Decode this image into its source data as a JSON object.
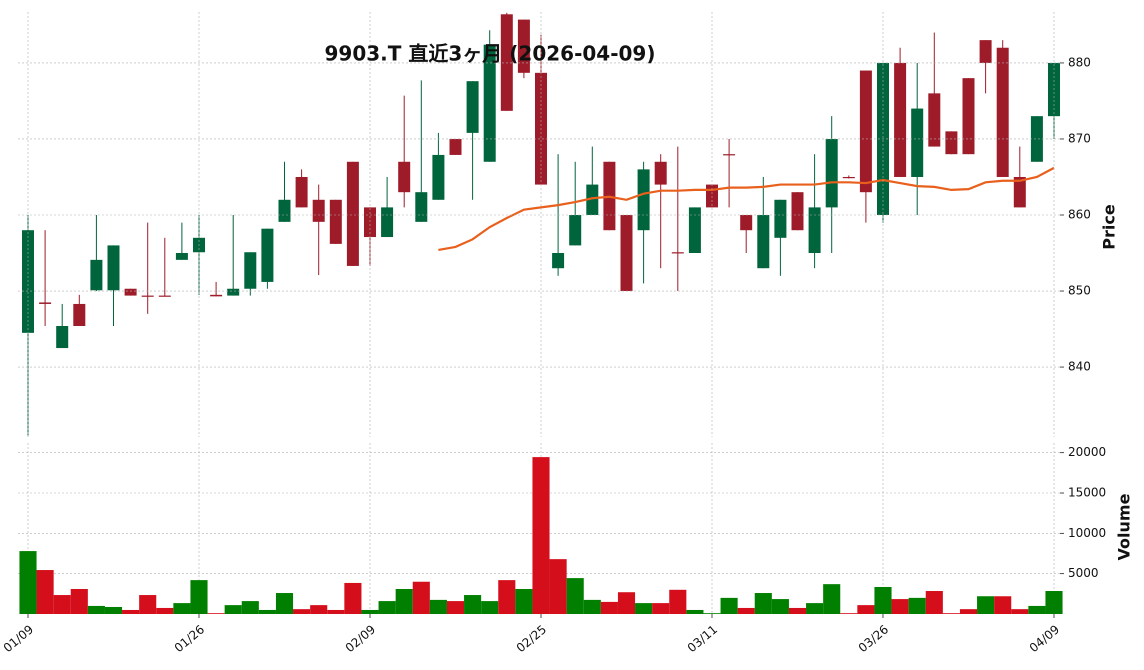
{
  "chart_data": [
    {
      "type": "candlestick",
      "title": "9903.T 直近3ヶ月 (2026-04-09)",
      "ylabel": "Price",
      "categories": [
        "01/09",
        null,
        null,
        null,
        null,
        null,
        null,
        null,
        null,
        null,
        "01/26",
        null,
        null,
        null,
        null,
        null,
        null,
        null,
        null,
        null,
        "02/09",
        null,
        null,
        null,
        null,
        null,
        null,
        null,
        null,
        null,
        "02/25",
        null,
        null,
        null,
        null,
        null,
        null,
        null,
        null,
        null,
        "03/11",
        null,
        null,
        null,
        null,
        null,
        null,
        null,
        null,
        null,
        "03/26",
        null,
        null,
        null,
        null,
        null,
        null,
        null,
        null,
        null,
        "04/09"
      ],
      "open": [
        844.5,
        848.5,
        842.5,
        848.3,
        850.1,
        850.1,
        850.3,
        849.4,
        849.4,
        854.1,
        855.1,
        849.5,
        849.4,
        850.3,
        851.2,
        859.1,
        865,
        862,
        862,
        867,
        861,
        857.1,
        867,
        859.1,
        862,
        870,
        870.8,
        867,
        886.4,
        885.7,
        878.7,
        853,
        856,
        860,
        867,
        860,
        858,
        867,
        855.1,
        855,
        864,
        868,
        860,
        853,
        857,
        863,
        855,
        861,
        865,
        879,
        860,
        880,
        865,
        876,
        871,
        878,
        883,
        882,
        865,
        867,
        873
      ],
      "high": [
        860,
        858,
        848.3,
        849.5,
        860,
        856,
        850.3,
        859,
        857,
        859,
        860,
        851.2,
        860,
        855.1,
        858.2,
        867,
        866,
        864,
        862,
        867,
        861,
        865,
        875.7,
        877.7,
        870.8,
        870,
        877.6,
        884.3,
        886.6,
        885.7,
        883.7,
        868,
        867,
        869,
        867,
        860,
        867,
        868,
        869,
        861,
        864,
        870,
        860,
        865,
        862,
        863,
        868,
        873,
        865.2,
        879,
        880,
        882,
        880,
        884,
        871,
        878,
        883,
        883,
        869,
        873,
        880
      ],
      "low": [
        831,
        845.4,
        842.5,
        845.4,
        850,
        845.4,
        849.4,
        847,
        849.3,
        854.1,
        849.5,
        849.3,
        849.4,
        849.4,
        850.3,
        859.1,
        861,
        852.1,
        856.2,
        853.3,
        853.3,
        857.1,
        861,
        859.1,
        862,
        867.9,
        862,
        867,
        873.7,
        878,
        864,
        852,
        856,
        860,
        858,
        850,
        851,
        853,
        850,
        855,
        861,
        861,
        855,
        853,
        852,
        858,
        853,
        855,
        864.8,
        859,
        859,
        865,
        860,
        869,
        868,
        868,
        876,
        865,
        861,
        867,
        870
      ],
      "close": [
        858,
        848.3,
        845.4,
        845.4,
        854.1,
        856,
        849.4,
        849.3,
        849.3,
        855,
        857,
        849.3,
        850.3,
        855.1,
        858.2,
        862,
        861,
        859.1,
        856.2,
        853.3,
        857.1,
        861,
        863,
        863,
        867.9,
        867.9,
        877.6,
        882.4,
        873.7,
        878.7,
        864,
        855,
        860,
        864,
        858,
        850,
        866,
        864,
        855,
        861,
        861,
        867.9,
        858,
        860,
        862,
        858,
        861,
        870,
        864.9,
        863,
        880,
        865,
        874,
        869,
        868,
        868,
        880,
        865,
        861,
        873,
        880
      ],
      "up_color": "#00643c",
      "down_color": "#9e1c2a",
      "ma_values": [
        null,
        null,
        null,
        null,
        null,
        null,
        null,
        null,
        null,
        null,
        null,
        null,
        null,
        null,
        null,
        null,
        null,
        null,
        null,
        null,
        null,
        null,
        null,
        null,
        855.4,
        855.8,
        856.8,
        858.4,
        859.6,
        860.7,
        861,
        861.3,
        861.7,
        862.2,
        862.4,
        862,
        862.8,
        863.2,
        863.2,
        863.3,
        863.3,
        863.6,
        863.6,
        863.7,
        864,
        864,
        864,
        864.3,
        864.3,
        864.2,
        864.6,
        864.2,
        863.8,
        863.7,
        863.3,
        863.4,
        864.3,
        864.5,
        864.5,
        865,
        866.2
      ],
      "ma_color": "#e8601c",
      "ylim": [
        830.8,
        886.7
      ],
      "yticks": [
        840,
        850,
        860,
        870,
        880
      ],
      "grid": true
    },
    {
      "type": "bar",
      "ylabel": "Volume",
      "values": [
        7800,
        5450,
        2350,
        3100,
        1000,
        870,
        500,
        2350,
        750,
        1350,
        4200,
        100,
        1100,
        1600,
        500,
        2600,
        600,
        1100,
        500,
        3850,
        500,
        1600,
        3100,
        4000,
        1750,
        1600,
        2350,
        1600,
        4200,
        3100,
        19450,
        6800,
        4450,
        1750,
        1500,
        2700,
        1350,
        1350,
        3000,
        500,
        100,
        2000,
        750,
        2600,
        1850,
        750,
        1350,
        3700,
        100,
        1100,
        3350,
        1850,
        2000,
        2850,
        100,
        600,
        2200,
        2200,
        600,
        1000,
        2850
      ],
      "colors": [
        "#007f00",
        "#d40f1b",
        "#d40f1b",
        "#d40f1b",
        "#007f00",
        "#007f00",
        "#d40f1b",
        "#d40f1b",
        "#d40f1b",
        "#007f00",
        "#007f00",
        "#d40f1b",
        "#007f00",
        "#007f00",
        "#007f00",
        "#007f00",
        "#d40f1b",
        "#d40f1b",
        "#d40f1b",
        "#d40f1b",
        "#007f00",
        "#007f00",
        "#007f00",
        "#d40f1b",
        "#007f00",
        "#d40f1b",
        "#007f00",
        "#007f00",
        "#d40f1b",
        "#007f00",
        "#d40f1b",
        "#d40f1b",
        "#007f00",
        "#007f00",
        "#d40f1b",
        "#d40f1b",
        "#007f00",
        "#d40f1b",
        "#d40f1b",
        "#007f00",
        "#007f00",
        "#007f00",
        "#d40f1b",
        "#007f00",
        "#007f00",
        "#d40f1b",
        "#007f00",
        "#007f00",
        "#d40f1b",
        "#d40f1b",
        "#007f00",
        "#d40f1b",
        "#007f00",
        "#d40f1b",
        "#d40f1b",
        "#d40f1b",
        "#007f00",
        "#d40f1b",
        "#d40f1b",
        "#007f00",
        "#007f00"
      ],
      "ylim": [
        0,
        21200
      ],
      "yticks": [
        5000,
        10000,
        15000,
        20000
      ],
      "grid": true
    }
  ]
}
